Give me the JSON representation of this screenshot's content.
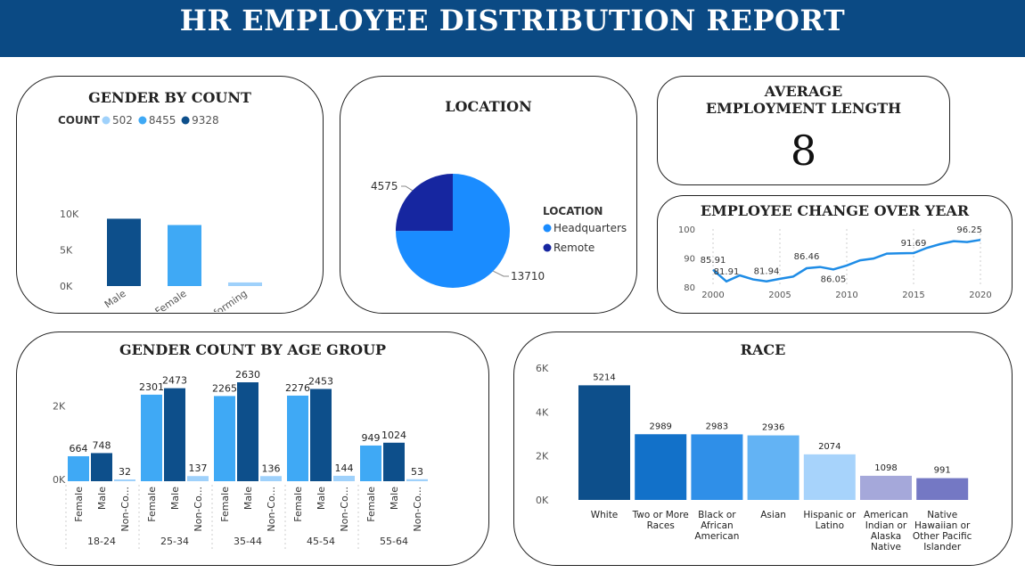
{
  "header": {
    "title": "HR EMPLOYEE DISTRIBUTION REPORT"
  },
  "colors": {
    "header_bg": "#0b4a84",
    "dark": "#0d4f8b",
    "medium": "#3fa9f5",
    "light": "#9fd1fb",
    "loc_hq": "#1a8cff",
    "loc_remote": "#1626a0",
    "line": "#1e8ce6"
  },
  "gender_count": {
    "title": "GENDER BY COUNT",
    "legend_label": "COUNT",
    "legend_items": [
      "502",
      "8455",
      "9328"
    ],
    "chart_data": {
      "type": "bar",
      "categories": [
        "Male",
        "Female",
        "Non-Conforming"
      ],
      "values": [
        9328,
        8455,
        502
      ],
      "yticks": [
        "0K",
        "5K",
        "10K"
      ],
      "ylim": [
        0,
        10000
      ]
    }
  },
  "location": {
    "title": "LOCATION",
    "legend_title": "LOCATION",
    "chart_data": {
      "type": "pie",
      "labels": [
        "Headquarters",
        "Remote"
      ],
      "values": [
        13710,
        4575
      ]
    }
  },
  "avg_employment": {
    "title_line1": "AVERAGE",
    "title_line2": "EMPLOYMENT LENGTH",
    "value": "8"
  },
  "employee_change": {
    "title": "EMPLOYEE CHANGE OVER YEAR",
    "chart_data": {
      "type": "line",
      "x": [
        2000,
        2001,
        2002,
        2003,
        2004,
        2005,
        2006,
        2007,
        2008,
        2009,
        2010,
        2011,
        2012,
        2013,
        2014,
        2015,
        2016,
        2017,
        2018,
        2019,
        2020
      ],
      "y": [
        85.91,
        81.91,
        84.0,
        82.6,
        81.94,
        82.8,
        83.6,
        86.46,
        86.9,
        86.05,
        87.4,
        89.2,
        89.8,
        91.5,
        91.6,
        91.69,
        93.5,
        94.8,
        95.8,
        95.5,
        96.25
      ],
      "labels": [
        {
          "x": 2000,
          "text": "85.91"
        },
        {
          "x": 2001,
          "text": "81.91"
        },
        {
          "x": 2004,
          "text": "81.94"
        },
        {
          "x": 2007,
          "text": "86.46"
        },
        {
          "x": 2009,
          "text": "86.05"
        },
        {
          "x": 2015,
          "text": "91.69"
        },
        {
          "x": 2020,
          "text": "96.25"
        }
      ],
      "xticks": [
        "2000",
        "2005",
        "2010",
        "2015",
        "2020"
      ],
      "yticks": [
        "80",
        "90",
        "100"
      ],
      "xlim": [
        2000,
        2020
      ],
      "ylim": [
        80,
        100
      ]
    }
  },
  "age_group": {
    "title": "GENDER COUNT BY AGE GROUP",
    "chart_data": {
      "type": "bar",
      "groups": [
        "18-24",
        "25-34",
        "35-44",
        "45-54",
        "55-64"
      ],
      "bar_labels": [
        "Female",
        "Male",
        "Non-Co..."
      ],
      "series": [
        {
          "values": [
            664,
            2301,
            2265,
            2276,
            949
          ]
        },
        {
          "values": [
            748,
            2473,
            2630,
            2453,
            1024
          ]
        },
        {
          "values": [
            32,
            137,
            136,
            144,
            53
          ]
        }
      ],
      "yticks": [
        "0K",
        "2K"
      ],
      "ylim": [
        0,
        2800
      ]
    }
  },
  "race": {
    "title": "RACE",
    "chart_data": {
      "type": "bar",
      "categories": [
        [
          "White"
        ],
        [
          "Two or More",
          "Races"
        ],
        [
          "Black or",
          "African",
          "American"
        ],
        [
          "Asian"
        ],
        [
          "Hispanic or",
          "Latino"
        ],
        [
          "American",
          "Indian or",
          "Alaska",
          "Native"
        ],
        [
          "Native",
          "Hawaiian or",
          "Other Pacific",
          "Islander"
        ]
      ],
      "values": [
        5214,
        2989,
        2983,
        2936,
        2074,
        1098,
        991
      ],
      "colors": [
        "#0d4f8b",
        "#1271c9",
        "#2f8fe8",
        "#63b3f4",
        "#a7d3fb",
        "#a5a8da",
        "#7478c4"
      ],
      "yticks": [
        "0K",
        "2K",
        "4K",
        "6K"
      ],
      "ylim": [
        0,
        6000
      ]
    }
  }
}
